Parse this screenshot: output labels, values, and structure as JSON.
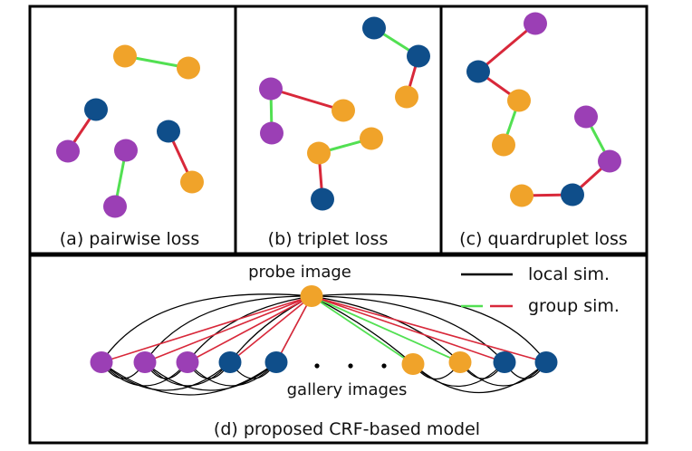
{
  "colors": {
    "orange": "#f0a32a",
    "navy": "#0f4e8a",
    "purple": "#9b3fb5",
    "green": "#52e052",
    "red": "#d8283a",
    "black": "#000000"
  },
  "panels": {
    "a": {
      "caption": "(a) pairwise loss"
    },
    "b": {
      "caption": "(b) triplet loss"
    },
    "c": {
      "caption": "(c) quardruplet loss"
    },
    "d": {
      "caption": "(d) proposed CRF-based model",
      "probe_label": "probe image",
      "gallery_label": "gallery images",
      "legend": {
        "local": "local sim.",
        "group": "group sim."
      }
    }
  }
}
